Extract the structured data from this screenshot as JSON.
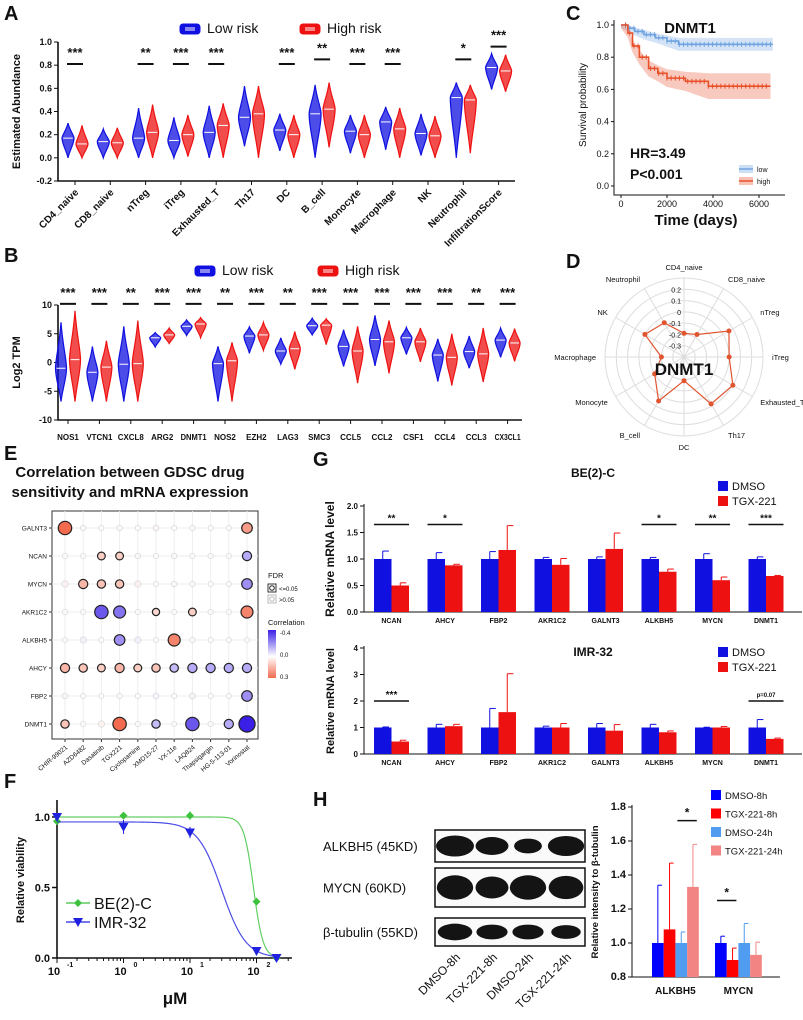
{
  "panels": {
    "A": "A",
    "B": "B",
    "C": "C",
    "D": "D",
    "E": "E",
    "F": "F",
    "G": "G",
    "H": "H"
  },
  "colors": {
    "low": "#1010e0",
    "high": "#ee1111",
    "km_low": "#6fa3e0",
    "km_high": "#e8502a",
    "radar": "#e0552f",
    "corr_neg": "#3a1fe6",
    "corr_pos": "#f26b4e",
    "green": "#3cc23c",
    "blue": "#2020e0",
    "dmso8": "#0000ff",
    "tgx8": "#ff0000",
    "dmso24": "#4f9cf0",
    "tgx24": "#f28484"
  },
  "chart_data": [
    {
      "id": "A",
      "type": "violin",
      "legend": [
        "Low risk",
        "High risk"
      ],
      "ylabel": "Estimated Abundance",
      "ylim": [
        -0.2,
        1.0
      ],
      "yticks": [
        "-0.2",
        "0.0",
        "0.2",
        "0.4",
        "0.6",
        "0.8",
        "1.0"
      ],
      "categories": [
        "CD4_naive",
        "CD8_naive",
        "nTreg",
        "iTreg",
        "Exhausted_T",
        "Th17",
        "DC",
        "B_cell",
        "Monocyte",
        "Macrophage",
        "NK",
        "Neutrophil",
        "InfiltrationScore"
      ],
      "significance": [
        "***",
        "",
        "**",
        "***",
        "***",
        "",
        "***",
        "**",
        "***",
        "***",
        "",
        "*",
        "***"
      ],
      "series": [
        {
          "name": "Low risk",
          "median": [
            0.17,
            0.14,
            0.17,
            0.15,
            0.22,
            0.35,
            0.24,
            0.38,
            0.23,
            0.31,
            0.21,
            0.52,
            0.78
          ],
          "min": [
            0,
            0,
            0,
            0,
            0,
            0.1,
            0.06,
            0,
            0.04,
            0.07,
            0.02,
            0,
            0.59
          ],
          "max": [
            0.3,
            0.25,
            0.43,
            0.35,
            0.45,
            0.62,
            0.38,
            0.63,
            0.37,
            0.44,
            0.38,
            0.65,
            0.9
          ]
        },
        {
          "name": "High risk",
          "median": [
            0.12,
            0.13,
            0.22,
            0.2,
            0.28,
            0.38,
            0.2,
            0.42,
            0.2,
            0.25,
            0.19,
            0.5,
            0.75
          ],
          "min": [
            0,
            0,
            0,
            0.01,
            0,
            0,
            0,
            0.09,
            0,
            0,
            0,
            0.04,
            0.57
          ],
          "max": [
            0.28,
            0.26,
            0.46,
            0.37,
            0.47,
            0.62,
            0.37,
            0.65,
            0.37,
            0.43,
            0.36,
            0.63,
            0.89
          ]
        }
      ]
    },
    {
      "id": "B",
      "type": "violin",
      "legend": [
        "Low risk",
        "High risk"
      ],
      "ylabel": "Log2 TPM",
      "ylim": [
        -10,
        10
      ],
      "yticks": [
        "-10",
        "-5",
        "0",
        "5",
        "10"
      ],
      "categories": [
        "NOS1",
        "VTCN1",
        "CXCL8",
        "ARG2",
        "DNMT1",
        "NOS2",
        "EZH2",
        "LAG3",
        "SMC3",
        "CCL5",
        "CCL2",
        "CSF1",
        "CCL4",
        "CCL3",
        "CX3CL1"
      ],
      "significance": [
        "***",
        "***",
        "**",
        "***",
        "***",
        "**",
        "***",
        "**",
        "***",
        "***",
        "***",
        "***",
        "***",
        "**",
        "***"
      ],
      "series": [
        {
          "name": "Low risk",
          "median": [
            -1,
            -1.7,
            -0.3,
            4.3,
            6.3,
            -0.2,
            4.6,
            2,
            6.4,
            2.8,
            4,
            4.3,
            1.3,
            1.9,
            3.9
          ],
          "min": [
            -6.8,
            -6.8,
            -6.8,
            2.7,
            4.7,
            -6.8,
            1.6,
            -0.3,
            4.8,
            -0.7,
            -0.6,
            1.4,
            -3.3,
            -1,
            0.9
          ],
          "max": [
            7,
            2.8,
            6.3,
            5.2,
            7.4,
            2.8,
            6.2,
            4.3,
            7.7,
            5.7,
            8.2,
            6.1,
            4.1,
            4.6,
            6
          ]
        },
        {
          "name": "High risk",
          "median": [
            0.5,
            -0.8,
            -0.2,
            4.8,
            6.7,
            0.3,
            4.8,
            2.4,
            6.5,
            2,
            3.6,
            3.6,
            0.9,
            1.5,
            3.4
          ],
          "min": [
            -6.8,
            -6.8,
            -6.8,
            3.3,
            4.3,
            -6.8,
            2.1,
            -1.2,
            3.1,
            -3.6,
            -1.9,
            0.1,
            -4,
            -3.4,
            0.2
          ],
          "max": [
            9,
            3.8,
            7.3,
            6,
            7.8,
            3.5,
            7,
            5.4,
            7.6,
            6.3,
            7.3,
            6,
            5,
            6,
            5.9
          ]
        }
      ]
    },
    {
      "id": "C",
      "type": "line",
      "title": "DNMT1",
      "xlabel": "Time (days)",
      "ylabel": "Survival probability",
      "xlim": [
        0,
        6600
      ],
      "ylim": [
        0,
        1
      ],
      "xticks": [
        "0",
        "2000",
        "4000",
        "6000"
      ],
      "yticks": [
        "0.0",
        "0.2",
        "0.4",
        "0.6",
        "0.8",
        "1.0"
      ],
      "annotations": [
        "HR=3.49",
        "P<0.001"
      ],
      "legend": [
        "low",
        "high"
      ],
      "series": [
        {
          "name": "low",
          "x": [
            0,
            300,
            600,
            1000,
            1500,
            2000,
            2500,
            6600
          ],
          "y": [
            1,
            0.98,
            0.96,
            0.94,
            0.92,
            0.9,
            0.88,
            0.88
          ],
          "ci": [
            0.02,
            0.02,
            0.025,
            0.03,
            0.03,
            0.035,
            0.04,
            0.04
          ]
        },
        {
          "name": "high",
          "x": [
            0,
            300,
            500,
            800,
            1200,
            1600,
            2000,
            2800,
            3800,
            6500
          ],
          "y": [
            1,
            0.95,
            0.87,
            0.8,
            0.73,
            0.7,
            0.67,
            0.65,
            0.62,
            0.62
          ],
          "ci": [
            0.02,
            0.03,
            0.04,
            0.045,
            0.05,
            0.05,
            0.055,
            0.06,
            0.08,
            0.08
          ]
        }
      ]
    },
    {
      "id": "D",
      "type": "radar",
      "center_label": "DNMT1",
      "rlim": [
        -0.4,
        0.3
      ],
      "rticks": [
        "-0.3",
        "-0.2",
        "-0.1",
        "0",
        "0.1",
        "0.2"
      ],
      "categories": [
        "CD4_naive",
        "CD8_naive",
        "nTreg",
        "iTreg",
        "Exhausted_T",
        "Th17",
        "DC",
        "B_cell",
        "Monocyte",
        "Macrophage",
        "NK",
        "Neutrophil"
      ],
      "values": [
        -0.19,
        -0.17,
        0.06,
        0.0,
        0.1,
        0.08,
        -0.19,
        0.05,
        -0.1,
        -0.2,
        0.0,
        -0.05
      ]
    },
    {
      "id": "E",
      "type": "dot",
      "title": [
        "Correlation between GDSC drug",
        "sensitivity and mRNA expression"
      ],
      "genes": [
        "GALNT3",
        "NCAN",
        "MYCN",
        "AKR1C2",
        "ALKBH5",
        "AHCY",
        "FBP2",
        "DNMT1"
      ],
      "drugs": [
        "CHIR-99021",
        "AZD6482",
        "Dasatinib",
        "TGX221",
        "Cyclopamine",
        "XMD15-27",
        "VX-11e",
        "LAQ824",
        "Thapsigargin",
        "HG-5-113-01",
        "Vorinostat"
      ],
      "correlation": [
        [
          0.3,
          0.02,
          0.01,
          0.02,
          0.01,
          0.03,
          0.01,
          0.01,
          0.01,
          0.01,
          0.2
        ],
        [
          0.01,
          0.01,
          0.1,
          0.1,
          0.02,
          0.01,
          0.02,
          0.01,
          0.01,
          0.01,
          -0.15
        ],
        [
          0.05,
          0.15,
          0.12,
          0.12,
          0.05,
          0.01,
          0.02,
          0.01,
          0.01,
          0.01,
          -0.2
        ],
        [
          0.01,
          0.01,
          -0.3,
          -0.25,
          0.01,
          0.08,
          0.01,
          0.1,
          0.01,
          0.01,
          0.25
        ],
        [
          0.01,
          -0.05,
          0.01,
          -0.2,
          -0.05,
          0.01,
          0.25,
          0.01,
          0.01,
          0.01,
          0.01
        ],
        [
          0.15,
          0.12,
          0.1,
          0.15,
          0.1,
          0.12,
          -0.12,
          -0.15,
          -0.15,
          -0.15,
          -0.15
        ],
        [
          -0.02,
          0.01,
          0.0,
          0.01,
          0.01,
          -0.03,
          0.01,
          -0.03,
          0.01,
          0.01,
          -0.2
        ],
        [
          0.12,
          0.01,
          0.05,
          0.3,
          0.01,
          -0.12,
          0.0,
          -0.3,
          0.01,
          -0.15,
          -0.4
        ]
      ],
      "fdr_significant": [
        [
          1,
          0,
          0,
          0,
          0,
          0,
          0,
          0,
          0,
          0,
          1
        ],
        [
          0,
          0,
          1,
          1,
          0,
          0,
          0,
          0,
          0,
          0,
          1
        ],
        [
          0,
          1,
          1,
          1,
          0,
          0,
          0,
          0,
          0,
          0,
          1
        ],
        [
          0,
          0,
          1,
          1,
          0,
          1,
          0,
          1,
          0,
          0,
          1
        ],
        [
          0,
          0,
          0,
          1,
          0,
          0,
          1,
          0,
          0,
          0,
          0
        ],
        [
          1,
          1,
          1,
          1,
          1,
          1,
          1,
          1,
          1,
          1,
          1
        ],
        [
          0,
          0,
          0,
          0,
          0,
          0,
          0,
          0,
          0,
          0,
          1
        ],
        [
          1,
          0,
          0,
          1,
          0,
          1,
          0,
          1,
          0,
          1,
          1
        ]
      ],
      "legend": {
        "fdr_title": "FDR",
        "fdr_levels": [
          "<=0.05",
          ">0.05"
        ],
        "corr_title": "Correlation",
        "corr_ticks": [
          "-0.4",
          "0.0",
          "0.3"
        ]
      }
    },
    {
      "id": "F",
      "type": "scatter",
      "xlabel": "μM",
      "ylabel": "Relative viability",
      "xscale": "log",
      "xlim": [
        0.1,
        300
      ],
      "ylim": [
        0,
        1.1
      ],
      "xticks": [
        "10",
        "10",
        "10",
        "10"
      ],
      "xtick_exp": [
        "-1",
        "0",
        "1",
        "2"
      ],
      "yticks": [
        "0.0",
        "0.5",
        "1.0"
      ],
      "series": [
        {
          "name": "BE(2)-C",
          "x": [
            0.1,
            1,
            10,
            100,
            200
          ],
          "y": [
            0.97,
            1.01,
            1.01,
            0.4,
            0.0
          ],
          "err": [
            0.02,
            0.01,
            0.03,
            0.01,
            0.01
          ],
          "fit": {
            "top": 1.0,
            "ic50": 90,
            "hill": 6
          }
        },
        {
          "name": "IMR-32",
          "x": [
            0.1,
            1,
            10,
            100,
            200
          ],
          "y": [
            1.0,
            0.93,
            0.89,
            0.05,
            0.0
          ],
          "err": [
            0.02,
            0.05,
            0.04,
            0.01,
            0.01
          ],
          "fit": {
            "top": 0.965,
            "ic50": 30,
            "hill": 2.4
          }
        }
      ]
    },
    {
      "id": "G1",
      "type": "bar",
      "title": "BE(2)-C",
      "ylabel": "Relative mRNA level",
      "ylim": [
        0,
        2.0
      ],
      "yticks": [
        "0.0",
        "0.5",
        "1.0",
        "1.5",
        "2.0"
      ],
      "categories": [
        "NCAN",
        "AHCY",
        "FBP2",
        "AKR1C2",
        "GALNT3",
        "ALKBH5",
        "MYCN",
        "DNMT1"
      ],
      "significance": [
        "**",
        "*",
        "",
        "",
        "",
        "*",
        "**",
        "***"
      ],
      "series": [
        {
          "name": "DMSO",
          "values": [
            1,
            1,
            1,
            1,
            1,
            1,
            1,
            1
          ],
          "err": [
            0.15,
            0.12,
            0.14,
            0.03,
            0.04,
            0.03,
            0.1,
            0.04
          ]
        },
        {
          "name": "TGX-221",
          "values": [
            0.5,
            0.88,
            1.17,
            0.89,
            1.19,
            0.76,
            0.6,
            0.68
          ],
          "err": [
            0.05,
            0.02,
            0.46,
            0.12,
            0.3,
            0.05,
            0.06,
            0.01
          ]
        }
      ]
    },
    {
      "id": "G2",
      "type": "bar",
      "title": "IMR-32",
      "ylabel": "Relative mRNA level",
      "ylim": [
        0,
        4
      ],
      "yticks": [
        "0",
        "1",
        "2",
        "3",
        "4"
      ],
      "categories": [
        "NCAN",
        "AHCY",
        "FBP2",
        "AKR1C2",
        "GALNT3",
        "ALKBH5",
        "MYCN",
        "DNMT1"
      ],
      "significance": [
        "***",
        "",
        "",
        "",
        "",
        "",
        "",
        "p=0.07"
      ],
      "series": [
        {
          "name": "DMSO",
          "values": [
            1,
            1,
            1,
            1,
            1,
            1,
            1,
            1
          ],
          "err": [
            0.02,
            0.12,
            0.72,
            0.05,
            0.15,
            0.12,
            0.01,
            0.3
          ]
        },
        {
          "name": "TGX-221",
          "values": [
            0.47,
            1.05,
            1.58,
            1.0,
            0.88,
            0.82,
            1.0,
            0.57
          ],
          "err": [
            0.05,
            0.07,
            1.45,
            0.15,
            0.23,
            0.05,
            0.04,
            0.03
          ]
        }
      ]
    },
    {
      "id": "H",
      "type": "bar",
      "ylabel": "Relative intensity to β-tubulin",
      "ylim": [
        0.8,
        1.8
      ],
      "yticks": [
        "0.8",
        "1.0",
        "1.2",
        "1.4",
        "1.6",
        "1.8"
      ],
      "categories": [
        "ALKBH5",
        "MYCN"
      ],
      "significance": [
        {
          "text": "*",
          "between": [
            2,
            3
          ]
        },
        {
          "text": "*",
          "between": [
            0,
            1
          ]
        }
      ],
      "series": [
        {
          "name": "DMSO-8h",
          "values": [
            1.0,
            1.0
          ],
          "err": [
            0.34,
            0.04
          ]
        },
        {
          "name": "TGX-221-8h",
          "values": [
            1.08,
            0.9
          ],
          "err": [
            0.39,
            0.07
          ]
        },
        {
          "name": "DMSO-24h",
          "values": [
            1.0,
            1.0
          ],
          "err": [
            0.065,
            0.115
          ]
        },
        {
          "name": "TGX-221-24h",
          "values": [
            1.33,
            0.93
          ],
          "err": [
            0.25,
            0.075
          ]
        }
      ]
    }
  ],
  "western_blot": {
    "bands": [
      "ALKBH5 (45KD)",
      "MYCN (60KD)",
      "β-tubulin (55KD)"
    ],
    "lanes": [
      "DMSO-8h",
      "TGX-221-8h",
      "DMSO-24h",
      "TGX-221-24h"
    ]
  }
}
